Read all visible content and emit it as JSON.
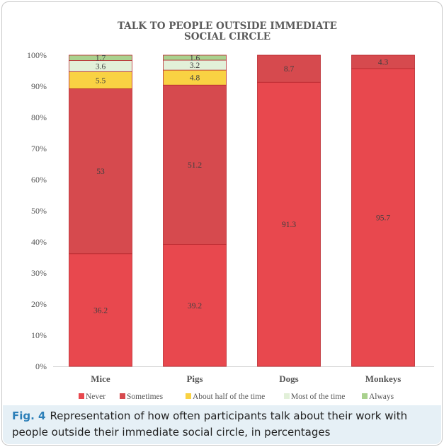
{
  "chart_data": {
    "type": "bar",
    "stacked": true,
    "title_lines": [
      "TALK TO PEOPLE OUTSIDE IMMEDIATE",
      "SOCIAL CIRCLE"
    ],
    "categories": [
      "Mice",
      "Pigs",
      "Dogs",
      "Monkeys"
    ],
    "series": [
      {
        "name": "Never",
        "color": "#e8484e",
        "values": [
          36.2,
          39.2,
          91.3,
          95.7
        ]
      },
      {
        "name": "Sometimes",
        "color": "#d64a4e",
        "values": [
          53,
          51.2,
          8.7,
          4.3
        ]
      },
      {
        "name": "About half of the time",
        "color": "#f9d243",
        "values": [
          5.5,
          4.8,
          0,
          0
        ]
      },
      {
        "name": "Most of the time",
        "color": "#e2f0d9",
        "values": [
          3.6,
          3.2,
          0,
          0
        ]
      },
      {
        "name": "Always",
        "color": "#a9d18e",
        "values": [
          1.7,
          1.6,
          0,
          0
        ]
      }
    ],
    "y_ticks": [
      "0%",
      "10%",
      "20%",
      "30%",
      "40%",
      "50%",
      "60%",
      "70%",
      "80%",
      "90%",
      "100%"
    ],
    "ylim": [
      0,
      100
    ],
    "legend_position": "bottom",
    "grid": false
  },
  "caption": {
    "label": "Fig. 4",
    "text": "Representation of how often participants talk about their work with people outside their immediate social circle, in percentages"
  }
}
